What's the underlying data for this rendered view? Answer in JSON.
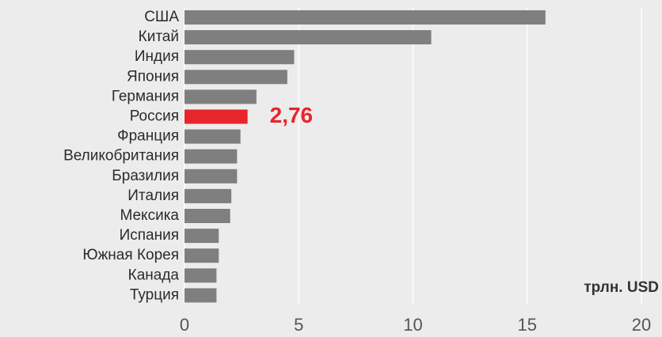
{
  "chart_data": {
    "type": "barh",
    "categories": [
      "США",
      "Китай",
      "Индия",
      "Япония",
      "Германия",
      "Россия",
      "Франция",
      "Великобритания",
      "Бразилия",
      "Италия",
      "Мексика",
      "Испания",
      "Южная Корея",
      "Канада",
      "Турция"
    ],
    "values": [
      15.8,
      10.8,
      4.8,
      4.5,
      3.15,
      2.76,
      2.45,
      2.3,
      2.3,
      2.05,
      2.0,
      1.5,
      1.5,
      1.4,
      1.4
    ],
    "value_labels": [
      null,
      null,
      null,
      null,
      null,
      "2,76",
      null,
      null,
      null,
      null,
      null,
      null,
      null,
      null,
      null
    ],
    "colors": [
      "#7f7f7f",
      "#7f7f7f",
      "#7f7f7f",
      "#7f7f7f",
      "#7f7f7f",
      "#e8252a",
      "#7f7f7f",
      "#7f7f7f",
      "#7f7f7f",
      "#7f7f7f",
      "#7f7f7f",
      "#7f7f7f",
      "#7f7f7f",
      "#7f7f7f",
      "#7f7f7f"
    ],
    "xlim": [
      0,
      20
    ],
    "xticks": [
      0,
      5,
      10,
      15,
      20
    ],
    "grid": true,
    "x_label": "трлн. USD"
  }
}
